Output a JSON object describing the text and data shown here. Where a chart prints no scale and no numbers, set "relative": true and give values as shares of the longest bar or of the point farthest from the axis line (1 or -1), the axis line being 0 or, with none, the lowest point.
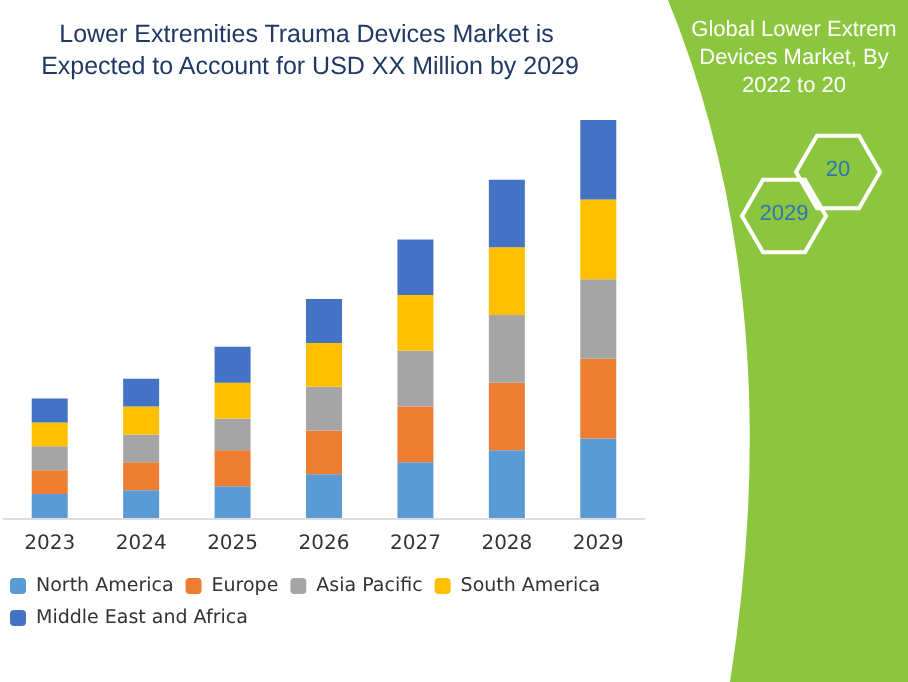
{
  "chart_data": {
    "type": "bar",
    "title": "Lower Extremities Trauma Devices Market is Expected to Account for USD XX Million by 2029",
    "categories": [
      "2023",
      "2024",
      "2025",
      "2026",
      "2027",
      "2028",
      "2029"
    ],
    "stacked": true,
    "relative": true,
    "legend": "bottom",
    "series": [
      {
        "name": "North America",
        "color": "#5b9bd5",
        "values": [
          0.06,
          0.07,
          0.08,
          0.11,
          0.14,
          0.17,
          0.2
        ]
      },
      {
        "name": "Europe",
        "color": "#ed7d31",
        "values": [
          0.06,
          0.07,
          0.09,
          0.11,
          0.14,
          0.17,
          0.2
        ]
      },
      {
        "name": "Asia Pacific",
        "color": "#a5a5a5",
        "values": [
          0.06,
          0.07,
          0.08,
          0.11,
          0.14,
          0.17,
          0.2
        ]
      },
      {
        "name": "South America",
        "color": "#ffc000",
        "values": [
          0.06,
          0.07,
          0.09,
          0.11,
          0.14,
          0.17,
          0.2
        ]
      },
      {
        "name": "Middle East and Africa",
        "color": "#4472c4",
        "values": [
          0.06,
          0.07,
          0.09,
          0.11,
          0.14,
          0.17,
          0.2
        ]
      }
    ],
    "annotations": [
      "Global Lower Extrem",
      "Devices Market, By",
      "2022 to 20",
      "2029",
      "20"
    ]
  }
}
